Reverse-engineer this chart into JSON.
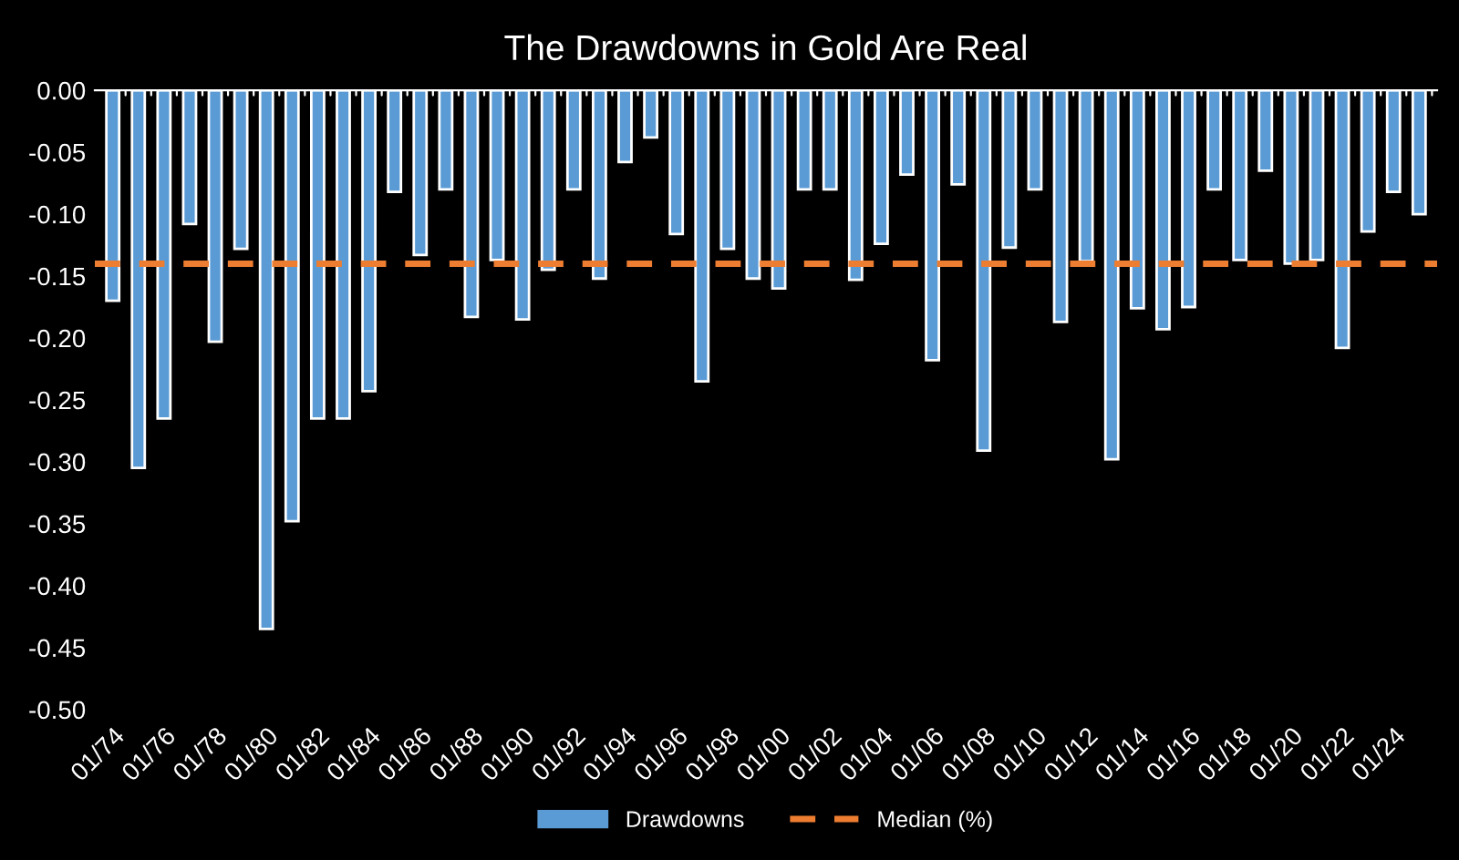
{
  "chart_data": {
    "type": "bar",
    "title": "The Drawdowns in Gold Are Real",
    "categories": [
      "01/74",
      null,
      "01/76",
      null,
      "01/78",
      null,
      "01/80",
      null,
      "01/82",
      null,
      "01/84",
      null,
      "01/86",
      null,
      "01/88",
      null,
      "01/90",
      null,
      "01/92",
      null,
      "01/94",
      null,
      "01/96",
      null,
      "01/98",
      null,
      "01/00",
      null,
      "01/02",
      null,
      "01/04",
      null,
      "01/06",
      null,
      "01/08",
      null,
      "01/10",
      null,
      "01/12",
      null,
      "01/14",
      null,
      "01/16",
      null,
      "01/18",
      null,
      "01/20",
      null,
      "01/22",
      null,
      "01/24",
      null
    ],
    "series": [
      {
        "name": "Drawdowns",
        "color": "#5b9bd5",
        "values": [
          -0.17,
          -0.305,
          -0.265,
          -0.108,
          -0.203,
          -0.128,
          -0.435,
          -0.348,
          -0.265,
          -0.265,
          -0.243,
          -0.082,
          -0.133,
          -0.08,
          -0.183,
          -0.137,
          -0.185,
          -0.145,
          -0.08,
          -0.152,
          -0.058,
          -0.038,
          -0.116,
          -0.235,
          -0.128,
          -0.152,
          -0.16,
          -0.08,
          -0.08,
          -0.153,
          -0.124,
          -0.068,
          -0.218,
          -0.076,
          -0.291,
          -0.127,
          -0.08,
          -0.187,
          -0.138,
          -0.298,
          -0.176,
          -0.193,
          -0.175,
          -0.08,
          -0.137,
          -0.065,
          -0.14,
          -0.137,
          -0.208,
          -0.114,
          -0.082,
          -0.1
        ]
      }
    ],
    "ylim": [
      -0.5,
      0
    ],
    "yticks": [
      {
        "value": -0.5,
        "label": "-0.50"
      },
      {
        "value": -0.45,
        "label": "-0.45"
      },
      {
        "value": -0.4,
        "label": "-0.40"
      },
      {
        "value": -0.35,
        "label": "-0.35"
      },
      {
        "value": -0.3,
        "label": "-0.30"
      },
      {
        "value": -0.25,
        "label": "-0.25"
      },
      {
        "value": -0.2,
        "label": "-0.20"
      },
      {
        "value": -0.15,
        "label": "-0.15"
      },
      {
        "value": -0.1,
        "label": "-0.10"
      },
      {
        "value": -0.05,
        "label": "-0.05"
      },
      {
        "value": 0,
        "label": "0.00"
      }
    ],
    "ref_lines": [
      {
        "axis": "y",
        "value": -0.14,
        "label": "Median (%)",
        "color": "#ed7d31",
        "line_style": "dashed"
      }
    ],
    "grid": false,
    "legend": "bottom"
  }
}
